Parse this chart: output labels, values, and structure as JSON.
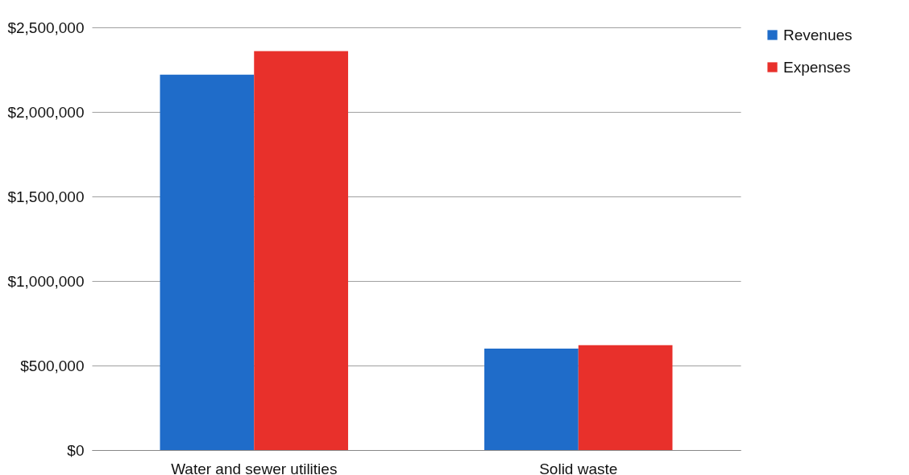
{
  "chart_data": {
    "type": "bar",
    "categories": [
      "Water and sewer utilities",
      "Solid waste"
    ],
    "series": [
      {
        "name": "Revenues",
        "color": "#1f6cc9",
        "values": [
          2220000,
          600000
        ]
      },
      {
        "name": "Expenses",
        "color": "#e8302b",
        "values": [
          2360000,
          620000
        ]
      }
    ],
    "ylim": [
      0,
      2500000
    ],
    "yticks": [
      {
        "value": 0,
        "label": "$0"
      },
      {
        "value": 500000,
        "label": "$500,000"
      },
      {
        "value": 1000000,
        "label": "$1,000,000"
      },
      {
        "value": 1500000,
        "label": "$1,500,000"
      },
      {
        "value": 2000000,
        "label": "$2,000,000"
      },
      {
        "value": 2500000,
        "label": "$2,500,000"
      }
    ],
    "grid": "y",
    "legend": "right"
  }
}
